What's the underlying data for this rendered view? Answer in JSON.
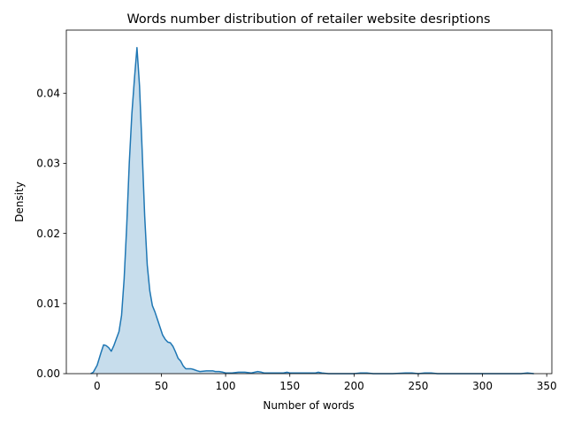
{
  "chart_data": {
    "type": "area",
    "title": "Words number distribution of retailer website desriptions",
    "xlabel": "Number of words",
    "ylabel": "Density",
    "xlim": [
      -24,
      354
    ],
    "ylim": [
      0,
      0.049
    ],
    "xticks": [
      0,
      50,
      100,
      150,
      200,
      250,
      300,
      350
    ],
    "xtick_labels": [
      "0",
      "50",
      "100",
      "150",
      "200",
      "250",
      "300",
      "350"
    ],
    "yticks": [
      0,
      0.01,
      0.02,
      0.03,
      0.04
    ],
    "ytick_labels": [
      "0.00",
      "0.01",
      "0.02",
      "0.03",
      "0.04"
    ],
    "grid": false,
    "legend": "none",
    "colors": {
      "line": "#1f77b4",
      "fill": "#1f77b4",
      "fill_opacity": 0.25
    },
    "series": [
      {
        "x": [
          -5,
          -3,
          0,
          3,
          5,
          7,
          9,
          11,
          13,
          15,
          17,
          19,
          21,
          23,
          25,
          27,
          29,
          31,
          33,
          35,
          37,
          39,
          41,
          43,
          45,
          47,
          49,
          51,
          53,
          55,
          57,
          59,
          61,
          63,
          65,
          67,
          69,
          71,
          73,
          75,
          78,
          80,
          85,
          90,
          92,
          95,
          98,
          100,
          105,
          110,
          115,
          120,
          125,
          128,
          130,
          135,
          140,
          145,
          148,
          150,
          155,
          160,
          165,
          170,
          172,
          175,
          180,
          190,
          200,
          205,
          210,
          215,
          220,
          230,
          240,
          245,
          250,
          255,
          260,
          265,
          270,
          280,
          290,
          300,
          310,
          320,
          330,
          335,
          340
        ],
        "y": [
          0.0,
          0.0002,
          0.0012,
          0.003,
          0.0041,
          0.004,
          0.0037,
          0.0032,
          0.004,
          0.005,
          0.006,
          0.0083,
          0.0135,
          0.021,
          0.03,
          0.037,
          0.042,
          0.0465,
          0.041,
          0.032,
          0.0225,
          0.0155,
          0.0118,
          0.0097,
          0.0088,
          0.0077,
          0.0066,
          0.0055,
          0.0049,
          0.0045,
          0.0044,
          0.0039,
          0.0031,
          0.0022,
          0.0018,
          0.0011,
          0.0007,
          0.0007,
          0.0007,
          0.0006,
          0.0004,
          0.0003,
          0.0004,
          0.0004,
          0.0003,
          0.0003,
          0.0002,
          0.0001,
          0.0001,
          0.0002,
          0.0002,
          0.0001,
          0.0003,
          0.0002,
          0.0001,
          0.0001,
          0.0001,
          0.0001,
          0.0002,
          0.0001,
          0.0001,
          0.0001,
          0.0001,
          0.0001,
          0.0002,
          0.0001,
          0.0,
          0.0,
          0.0,
          0.0001,
          0.0001,
          0.0,
          0.0,
          0.0,
          0.0001,
          0.0001,
          0.0,
          0.0001,
          0.0001,
          0.0,
          0.0,
          0.0,
          0.0,
          0.0,
          0.0,
          0.0,
          0.0,
          0.0001,
          0.0
        ]
      }
    ]
  }
}
